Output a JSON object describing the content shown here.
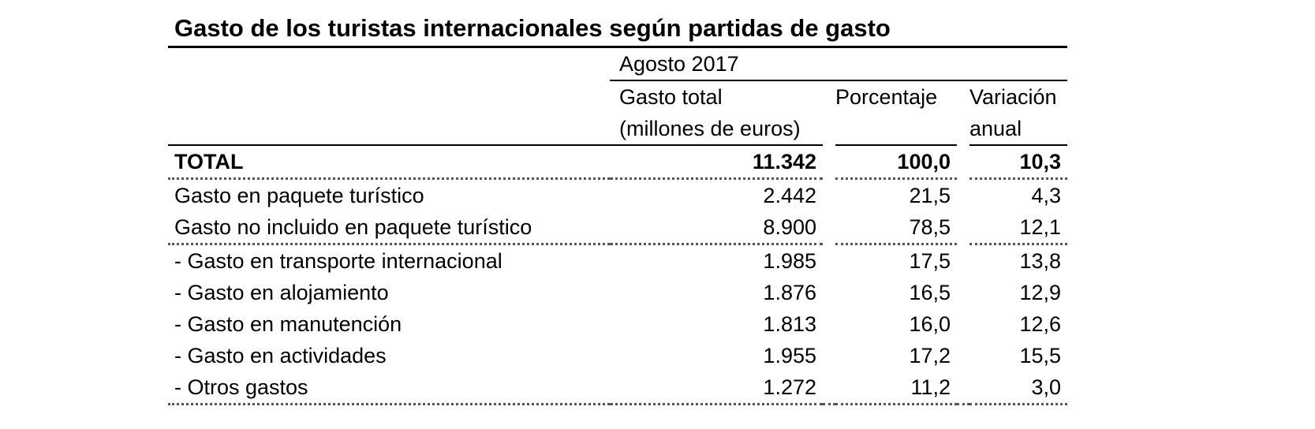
{
  "title": "Gasto de los turistas internacionales según partidas de gasto",
  "period": "Agosto 2017",
  "columns": {
    "gasto_total_line1": "Gasto total",
    "gasto_total_line2": "(millones de euros)",
    "porcentaje": "Porcentaje",
    "variacion_line1": "Variación",
    "variacion_line2": "anual"
  },
  "rows": [
    {
      "label": "TOTAL",
      "gasto": "11.342",
      "porcentaje": "100,0",
      "variacion": "10,3"
    },
    {
      "label": "Gasto en paquete turístico",
      "gasto": "2.442",
      "porcentaje": "21,5",
      "variacion": "4,3"
    },
    {
      "label": "Gasto no incluido en paquete turístico",
      "gasto": "8.900",
      "porcentaje": "78,5",
      "variacion": "12,1"
    },
    {
      "label": "- Gasto en transporte internacional",
      "gasto": "1.985",
      "porcentaje": "17,5",
      "variacion": "13,8"
    },
    {
      "label": "- Gasto en alojamiento",
      "gasto": "1.876",
      "porcentaje": "16,5",
      "variacion": "12,9"
    },
    {
      "label": "- Gasto en manutención",
      "gasto": "1.813",
      "porcentaje": "16,0",
      "variacion": "12,6"
    },
    {
      "label": "- Gasto en actividades",
      "gasto": "1.955",
      "porcentaje": "17,2",
      "variacion": "15,5"
    },
    {
      "label": "- Otros gastos",
      "gasto": "1.272",
      "porcentaje": "11,2",
      "variacion": "3,0"
    }
  ]
}
